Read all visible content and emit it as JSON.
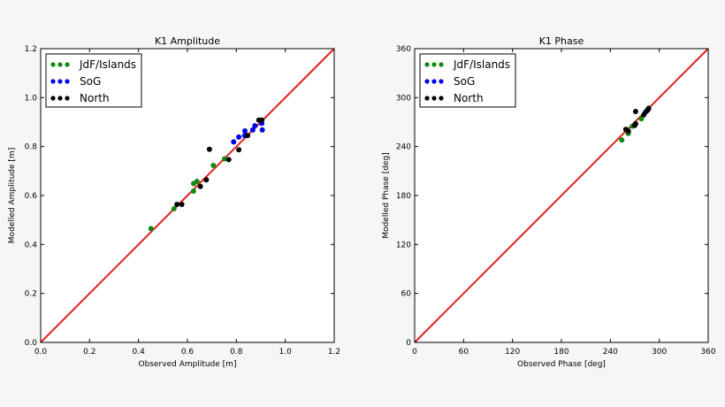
{
  "chart_data": [
    {
      "type": "scatter",
      "title": "K1 Amplitude",
      "xlabel": "Observed Amplitude [m]",
      "ylabel": "Modelled Amplitude [m]",
      "xlim": [
        0,
        1.2
      ],
      "ylim": [
        0,
        1.2
      ],
      "xticks": [
        "0.0",
        "0.2",
        "0.4",
        "0.6",
        "0.8",
        "1.0",
        "1.2"
      ],
      "yticks": [
        "0.0",
        "0.2",
        "0.4",
        "0.6",
        "0.8",
        "1.0",
        "1.2"
      ],
      "grid": false,
      "legend_position": "top-left",
      "reference_line": {
        "from": [
          0,
          0
        ],
        "to": [
          1.2,
          1.2
        ],
        "color": "#e0201c"
      },
      "series": [
        {
          "name": "JdF/Islands",
          "color": "#118811",
          "points": [
            [
              0.451,
              0.465
            ],
            [
              0.545,
              0.546
            ],
            [
              0.625,
              0.618
            ],
            [
              0.625,
              0.649
            ],
            [
              0.639,
              0.658
            ],
            [
              0.706,
              0.723
            ],
            [
              0.752,
              0.75
            ]
          ]
        },
        {
          "name": "SoG",
          "color": "#0000ee",
          "points": [
            [
              0.789,
              0.819
            ],
            [
              0.81,
              0.839
            ],
            [
              0.835,
              0.864
            ],
            [
              0.834,
              0.845
            ],
            [
              0.867,
              0.868
            ],
            [
              0.876,
              0.885
            ],
            [
              0.904,
              0.895
            ],
            [
              0.906,
              0.868
            ]
          ]
        },
        {
          "name": "North",
          "color": "#000000",
          "points": [
            [
              0.557,
              0.564
            ],
            [
              0.577,
              0.564
            ],
            [
              0.653,
              0.637
            ],
            [
              0.677,
              0.664
            ],
            [
              0.69,
              0.789
            ],
            [
              0.769,
              0.747
            ],
            [
              0.81,
              0.787
            ],
            [
              0.846,
              0.845
            ],
            [
              0.892,
              0.908
            ],
            [
              0.904,
              0.908
            ]
          ]
        }
      ]
    },
    {
      "type": "scatter",
      "title": "K1 Phase",
      "xlabel": "Observed Phase [deg]",
      "ylabel": "Modelled Phase [deg]",
      "xlim": [
        0,
        360
      ],
      "ylim": [
        0,
        360
      ],
      "xticks": [
        "0",
        "60",
        "120",
        "180",
        "240",
        "300",
        "360"
      ],
      "yticks": [
        "0",
        "60",
        "120",
        "180",
        "240",
        "300",
        "360"
      ],
      "grid": false,
      "legend_position": "top-left",
      "reference_line": {
        "from": [
          0,
          0
        ],
        "to": [
          360,
          360
        ],
        "color": "#e0201c"
      },
      "series": [
        {
          "name": "JdF/Islands",
          "color": "#118811",
          "points": [
            [
              254,
              248
            ],
            [
              262,
              256
            ],
            [
              278,
              274
            ],
            [
              267,
              265
            ]
          ]
        },
        {
          "name": "SoG",
          "color": "#0000ee",
          "points": [
            [
              283,
              282
            ],
            [
              286,
              285
            ]
          ]
        },
        {
          "name": "North",
          "color": "#000000",
          "points": [
            [
              259,
              261
            ],
            [
              262,
              259
            ],
            [
              270,
              266
            ],
            [
              271,
              268
            ],
            [
              271,
              283
            ],
            [
              281,
              279
            ],
            [
              285,
              284
            ],
            [
              287,
              287
            ]
          ]
        }
      ]
    }
  ]
}
